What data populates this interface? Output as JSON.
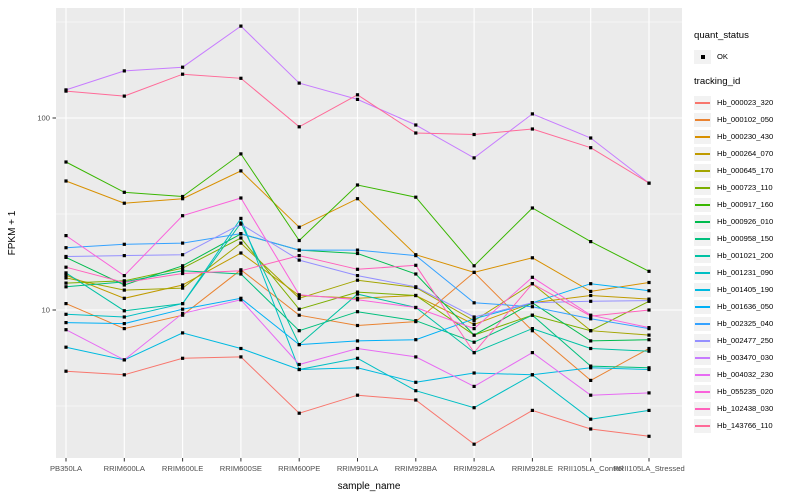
{
  "chart_data": {
    "type": "line",
    "title": "",
    "xlabel": "sample_name",
    "ylabel": "FPKM + 1",
    "yscale": "log10",
    "yticks": [
      100,
      10
    ],
    "ylim": [
      1.7,
      380
    ],
    "grid": "on",
    "legend_position": "right",
    "colors": {
      "panel_bg": "#EBEBEB",
      "grid": "#FFFFFF",
      "point": "#000000",
      "key_bg": "#F2F2F2",
      "tick_text": "#4D4D4D"
    },
    "categories": [
      "PB350LA",
      "RRIM600LA",
      "RRIM600LE",
      "RRIM600SE",
      "RRIM600PE",
      "RRIM901LA",
      "RRIM928BA",
      "RRIM928LA",
      "RRIM928LE",
      "RRII105LA_Control",
      "RRII105LA_Stressed"
    ],
    "legend": {
      "quant_title": "quant_status",
      "quant_items": [
        {
          "label": "OK",
          "marker": "black-point"
        }
      ],
      "series_title": "tracking_id"
    },
    "series": [
      {
        "name": "Hb_000023_320",
        "color": "#F8766D",
        "values": [
          4.8,
          4.6,
          5.6,
          5.7,
          2.9,
          3.6,
          3.4,
          2.0,
          3.0,
          2.4,
          2.2
        ]
      },
      {
        "name": "Hb_000102_050",
        "color": "#EA8331",
        "values": [
          10.8,
          8.0,
          9.4,
          16.2,
          9.4,
          8.3,
          8.7,
          15.7,
          7.8,
          4.3,
          6.3
        ]
      },
      {
        "name": "Hb_000230_430",
        "color": "#D89000",
        "values": [
          47,
          36,
          38,
          53,
          27,
          38,
          19.4,
          15.7,
          18.7,
          12.5,
          13.9
        ]
      },
      {
        "name": "Hb_000264_070",
        "color": "#C09B00",
        "values": [
          15.2,
          11.5,
          13.5,
          19.8,
          11.9,
          11.5,
          11.9,
          8.4,
          10.9,
          11.9,
          11.4
        ]
      },
      {
        "name": "Hb_000645_170",
        "color": "#A3A500",
        "values": [
          14.7,
          12.7,
          13.0,
          22.3,
          11.5,
          14.3,
          13.1,
          8.8,
          13.7,
          7.8,
          7.4
        ]
      },
      {
        "name": "Hb_000723_110",
        "color": "#7CAE00",
        "values": [
          13.8,
          14.2,
          16.5,
          23.7,
          10.1,
          12.4,
          11.9,
          7.4,
          9.4,
          7.8,
          11.1
        ]
      },
      {
        "name": "Hb_000917_160",
        "color": "#39B600",
        "values": [
          59,
          41,
          39,
          65,
          23,
          44.8,
          38.7,
          17.0,
          34,
          22.7,
          15.9
        ]
      },
      {
        "name": "Hb_000926_010",
        "color": "#00BB4E",
        "values": [
          18.8,
          13.5,
          17.0,
          24.9,
          20.5,
          19.7,
          15.4,
          7.4,
          10.9,
          6.9,
          7.0
        ]
      },
      {
        "name": "Hb_000958_150",
        "color": "#00BF7D",
        "values": [
          13.2,
          14.0,
          16.0,
          15.4,
          7.8,
          9.8,
          8.8,
          6.8,
          9.4,
          5.1,
          5.0
        ]
      },
      {
        "name": "Hb_001021_200",
        "color": "#00C1A3",
        "values": [
          15.6,
          9.9,
          10.8,
          28.4,
          6.6,
          12.1,
          10.3,
          6.0,
          8.0,
          6.3,
          6.1
        ]
      },
      {
        "name": "Hb_001231_090",
        "color": "#00BFC4",
        "values": [
          9.5,
          9.2,
          10.8,
          30.0,
          4.9,
          5.6,
          3.8,
          3.1,
          4.6,
          2.7,
          3.0
        ]
      },
      {
        "name": "Hb_001405_190",
        "color": "#00BAE0",
        "values": [
          6.4,
          5.5,
          7.6,
          6.3,
          4.9,
          5.0,
          4.2,
          4.7,
          4.6,
          5.0,
          4.9
        ]
      },
      {
        "name": "Hb_001636_050",
        "color": "#00B0F6",
        "values": [
          8.6,
          8.5,
          10.1,
          11.5,
          6.6,
          6.9,
          7.0,
          9.0,
          10.9,
          13.7,
          12.6
        ]
      },
      {
        "name": "Hb_002325_040",
        "color": "#35A2FF",
        "values": [
          21.1,
          22.0,
          22.3,
          25.0,
          20.5,
          20.5,
          19.2,
          10.9,
          10.4,
          9.0,
          8.0
        ]
      },
      {
        "name": "Hb_002477_250",
        "color": "#9590FF",
        "values": [
          19.0,
          19.2,
          19.4,
          28.0,
          18.2,
          15.1,
          13.2,
          9.2,
          10.9,
          11.1,
          11.2
        ]
      },
      {
        "name": "Hb_003470_030",
        "color": "#C77CFF",
        "values": [
          140,
          176,
          184,
          301,
          152,
          125,
          92,
          62,
          105,
          78.7,
          45.8
        ]
      },
      {
        "name": "Hb_004032_230",
        "color": "#E76BF3",
        "values": [
          7.9,
          5.5,
          9.6,
          11.3,
          5.2,
          6.3,
          5.7,
          4.0,
          6.0,
          3.6,
          3.7
        ]
      },
      {
        "name": "Hb_055235_020",
        "color": "#FA62DB",
        "values": [
          24.4,
          15.1,
          31.0,
          38.3,
          12.0,
          11.3,
          10.3,
          8.0,
          14.8,
          9.4,
          8.1
        ]
      },
      {
        "name": "Hb_102438_030",
        "color": "#FF62BC",
        "values": [
          16.7,
          13.9,
          15.5,
          16.0,
          19.2,
          16.3,
          17.1,
          6.0,
          13.7,
          9.3,
          10.0
        ]
      },
      {
        "name": "Hb_143766_110",
        "color": "#FF6A98",
        "values": [
          138,
          130,
          169,
          161,
          90,
          132,
          83.5,
          82,
          87.6,
          70,
          45.8
        ]
      }
    ]
  }
}
